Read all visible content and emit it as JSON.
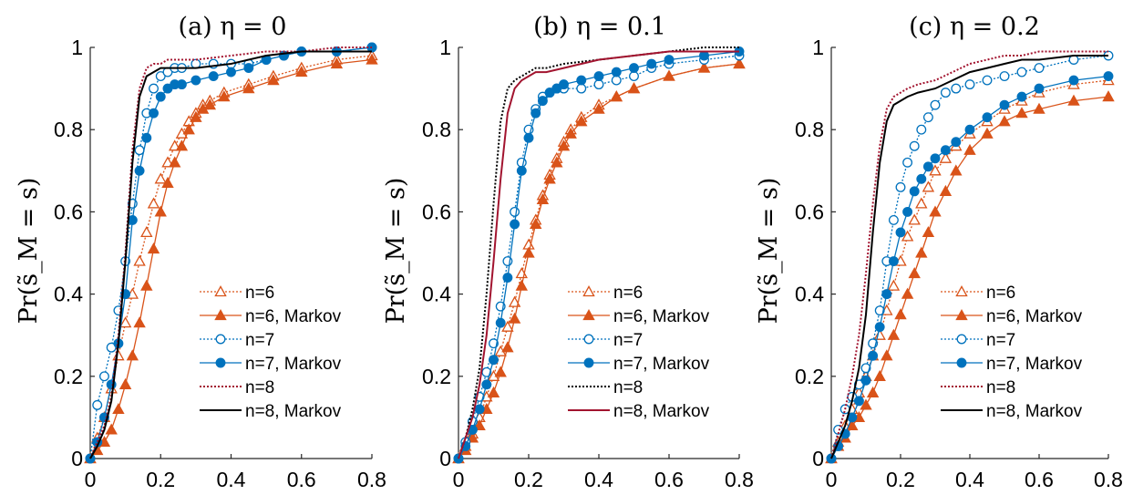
{
  "colors": {
    "orange": "#D95319",
    "blue": "#0072BD",
    "black": "#000000",
    "darkred": "#A2142F"
  },
  "chart_data": [
    {
      "type": "line",
      "title": "(a) η = 0",
      "ylabel": "Pr(s̃_M = s)",
      "xlim": [
        0,
        0.8
      ],
      "ylim": [
        0,
        1
      ],
      "xticks": [
        "0",
        "0.2",
        "0.4",
        "0.6",
        "0.8"
      ],
      "yticks": [
        "0",
        "0.2",
        "0.4",
        "0.6",
        "0.8",
        "1"
      ],
      "legend_position": "lower-right",
      "series": [
        {
          "name": "n=6",
          "color": "#D95319",
          "line": "dotted",
          "marker": "triangle-open",
          "x": [
            0,
            0.02,
            0.04,
            0.06,
            0.08,
            0.1,
            0.12,
            0.14,
            0.16,
            0.18,
            0.2,
            0.22,
            0.24,
            0.26,
            0.28,
            0.3,
            0.32,
            0.34,
            0.38,
            0.45,
            0.52,
            0.6,
            0.7,
            0.8
          ],
          "y": [
            0,
            0.05,
            0.1,
            0.17,
            0.25,
            0.33,
            0.4,
            0.48,
            0.55,
            0.62,
            0.68,
            0.72,
            0.76,
            0.79,
            0.82,
            0.84,
            0.86,
            0.87,
            0.89,
            0.91,
            0.93,
            0.95,
            0.97,
            0.98
          ]
        },
        {
          "name": "n=6, Markov",
          "color": "#D95319",
          "line": "solid",
          "marker": "triangle-filled",
          "x": [
            0,
            0.02,
            0.04,
            0.06,
            0.08,
            0.1,
            0.12,
            0.14,
            0.16,
            0.18,
            0.2,
            0.22,
            0.24,
            0.26,
            0.28,
            0.3,
            0.32,
            0.34,
            0.38,
            0.45,
            0.52,
            0.6,
            0.7,
            0.8
          ],
          "y": [
            0,
            0.02,
            0.04,
            0.07,
            0.12,
            0.18,
            0.25,
            0.33,
            0.42,
            0.51,
            0.6,
            0.67,
            0.72,
            0.76,
            0.8,
            0.83,
            0.85,
            0.86,
            0.88,
            0.9,
            0.92,
            0.94,
            0.96,
            0.97
          ]
        },
        {
          "name": "n=7",
          "color": "#0072BD",
          "line": "dotted",
          "marker": "circle-open",
          "x": [
            0,
            0.02,
            0.04,
            0.06,
            0.08,
            0.1,
            0.12,
            0.14,
            0.16,
            0.18,
            0.2,
            0.22,
            0.24,
            0.26,
            0.3,
            0.35,
            0.4,
            0.45,
            0.5,
            0.55,
            0.6,
            0.7,
            0.8
          ],
          "y": [
            0,
            0.13,
            0.2,
            0.27,
            0.36,
            0.48,
            0.62,
            0.75,
            0.84,
            0.9,
            0.93,
            0.94,
            0.95,
            0.95,
            0.96,
            0.96,
            0.96,
            0.96,
            0.97,
            0.98,
            0.99,
            0.99,
            1.0
          ]
        },
        {
          "name": "n=7, Markov",
          "color": "#0072BD",
          "line": "solid",
          "marker": "circle-filled",
          "x": [
            0,
            0.02,
            0.04,
            0.06,
            0.08,
            0.1,
            0.12,
            0.14,
            0.16,
            0.18,
            0.2,
            0.22,
            0.24,
            0.26,
            0.3,
            0.35,
            0.4,
            0.45,
            0.5,
            0.55,
            0.6,
            0.7,
            0.8
          ],
          "y": [
            0,
            0.04,
            0.1,
            0.18,
            0.28,
            0.4,
            0.58,
            0.7,
            0.78,
            0.84,
            0.88,
            0.9,
            0.91,
            0.91,
            0.92,
            0.93,
            0.94,
            0.95,
            0.97,
            0.98,
            0.99,
            0.99,
            1.0
          ]
        },
        {
          "name": "n=8",
          "color": "#A2142F",
          "line": "dotted",
          "marker": "none",
          "x": [
            0,
            0.02,
            0.04,
            0.06,
            0.08,
            0.1,
            0.12,
            0.14,
            0.16,
            0.18,
            0.2,
            0.22,
            0.25,
            0.3,
            0.4,
            0.5,
            0.6,
            0.7,
            0.8
          ],
          "y": [
            0,
            0.04,
            0.08,
            0.15,
            0.3,
            0.5,
            0.75,
            0.9,
            0.95,
            0.96,
            0.96,
            0.97,
            0.97,
            0.97,
            0.98,
            0.99,
            0.99,
            1.0,
            1.0
          ]
        },
        {
          "name": "n=8, Markov",
          "color": "#000000",
          "line": "solid",
          "marker": "none",
          "x": [
            0,
            0.02,
            0.04,
            0.06,
            0.08,
            0.1,
            0.12,
            0.14,
            0.16,
            0.18,
            0.2,
            0.25,
            0.3,
            0.4,
            0.5,
            0.6,
            0.7,
            0.8
          ],
          "y": [
            0,
            0.03,
            0.07,
            0.14,
            0.28,
            0.48,
            0.72,
            0.88,
            0.93,
            0.94,
            0.95,
            0.95,
            0.95,
            0.96,
            0.98,
            0.99,
            0.99,
            0.99
          ]
        }
      ]
    },
    {
      "type": "line",
      "title": "(b) η = 0.1",
      "ylabel": "Pr(s̃_M = s)",
      "xlim": [
        0,
        0.8
      ],
      "ylim": [
        0,
        1
      ],
      "xticks": [
        "0",
        "0.2",
        "0.4",
        "0.6",
        "0.8"
      ],
      "yticks": [
        "0",
        "0.2",
        "0.4",
        "0.6",
        "0.8",
        "1"
      ],
      "legend_position": "lower-right",
      "series": [
        {
          "name": "n=6",
          "color": "#D95319",
          "line": "dotted",
          "marker": "triangle-open",
          "x": [
            0,
            0.02,
            0.04,
            0.06,
            0.08,
            0.1,
            0.12,
            0.14,
            0.16,
            0.18,
            0.2,
            0.22,
            0.24,
            0.26,
            0.28,
            0.3,
            0.32,
            0.35,
            0.4,
            0.45,
            0.5,
            0.6,
            0.7,
            0.8
          ],
          "y": [
            0,
            0.03,
            0.06,
            0.1,
            0.15,
            0.2,
            0.26,
            0.32,
            0.38,
            0.45,
            0.52,
            0.58,
            0.64,
            0.69,
            0.73,
            0.77,
            0.8,
            0.83,
            0.86,
            0.88,
            0.9,
            0.93,
            0.95,
            0.96
          ]
        },
        {
          "name": "n=6, Markov",
          "color": "#D95319",
          "line": "solid",
          "marker": "triangle-filled",
          "x": [
            0,
            0.02,
            0.04,
            0.06,
            0.08,
            0.1,
            0.12,
            0.14,
            0.16,
            0.18,
            0.2,
            0.22,
            0.24,
            0.26,
            0.28,
            0.3,
            0.32,
            0.35,
            0.4,
            0.45,
            0.5,
            0.6,
            0.7,
            0.8
          ],
          "y": [
            0,
            0.02,
            0.05,
            0.08,
            0.12,
            0.16,
            0.21,
            0.27,
            0.34,
            0.42,
            0.5,
            0.57,
            0.63,
            0.68,
            0.72,
            0.76,
            0.79,
            0.82,
            0.85,
            0.88,
            0.9,
            0.93,
            0.95,
            0.96
          ]
        },
        {
          "name": "n=7",
          "color": "#0072BD",
          "line": "dotted",
          "marker": "circle-open",
          "x": [
            0,
            0.02,
            0.04,
            0.06,
            0.08,
            0.1,
            0.12,
            0.14,
            0.16,
            0.18,
            0.2,
            0.22,
            0.24,
            0.26,
            0.28,
            0.3,
            0.35,
            0.4,
            0.45,
            0.5,
            0.55,
            0.6,
            0.7,
            0.8
          ],
          "y": [
            0,
            0.04,
            0.09,
            0.15,
            0.21,
            0.28,
            0.37,
            0.48,
            0.6,
            0.72,
            0.8,
            0.85,
            0.88,
            0.89,
            0.9,
            0.9,
            0.9,
            0.91,
            0.92,
            0.93,
            0.95,
            0.96,
            0.97,
            0.98
          ]
        },
        {
          "name": "n=7, Markov",
          "color": "#0072BD",
          "line": "solid",
          "marker": "circle-filled",
          "x": [
            0,
            0.02,
            0.04,
            0.06,
            0.08,
            0.1,
            0.12,
            0.14,
            0.16,
            0.18,
            0.2,
            0.22,
            0.24,
            0.26,
            0.28,
            0.3,
            0.35,
            0.4,
            0.45,
            0.5,
            0.55,
            0.6,
            0.7,
            0.8
          ],
          "y": [
            0,
            0.03,
            0.07,
            0.12,
            0.18,
            0.24,
            0.33,
            0.44,
            0.57,
            0.7,
            0.78,
            0.84,
            0.87,
            0.89,
            0.9,
            0.91,
            0.92,
            0.93,
            0.94,
            0.95,
            0.96,
            0.97,
            0.98,
            0.99
          ]
        },
        {
          "name": "n=8",
          "color": "#000000",
          "line": "dotted",
          "marker": "none",
          "x": [
            0,
            0.02,
            0.04,
            0.06,
            0.08,
            0.1,
            0.12,
            0.14,
            0.16,
            0.18,
            0.2,
            0.22,
            0.25,
            0.3,
            0.4,
            0.5,
            0.6,
            0.7,
            0.8
          ],
          "y": [
            0,
            0.05,
            0.12,
            0.22,
            0.4,
            0.62,
            0.82,
            0.9,
            0.92,
            0.93,
            0.94,
            0.95,
            0.95,
            0.96,
            0.97,
            0.98,
            0.99,
            1.0,
            1.0
          ]
        },
        {
          "name": "n=8, Markov",
          "color": "#A2142F",
          "line": "solid",
          "marker": "none",
          "x": [
            0,
            0.02,
            0.04,
            0.06,
            0.08,
            0.1,
            0.12,
            0.14,
            0.16,
            0.18,
            0.2,
            0.22,
            0.25,
            0.3,
            0.4,
            0.5,
            0.6,
            0.7,
            0.8
          ],
          "y": [
            0,
            0.05,
            0.1,
            0.18,
            0.3,
            0.48,
            0.68,
            0.84,
            0.9,
            0.92,
            0.93,
            0.94,
            0.94,
            0.95,
            0.97,
            0.98,
            0.99,
            0.99,
            0.99
          ]
        }
      ]
    },
    {
      "type": "line",
      "title": "(c) η = 0.2",
      "ylabel": "Pr(s̃_M = s)",
      "xlim": [
        0,
        0.8
      ],
      "ylim": [
        0,
        1
      ],
      "xticks": [
        "0",
        "0.2",
        "0.4",
        "0.6",
        "0.8"
      ],
      "yticks": [
        "0",
        "0.2",
        "0.4",
        "0.6",
        "0.8",
        "1"
      ],
      "legend_position": "lower-right",
      "series": [
        {
          "name": "n=6",
          "color": "#D95319",
          "line": "dotted",
          "marker": "triangle-open",
          "x": [
            0,
            0.02,
            0.04,
            0.06,
            0.08,
            0.1,
            0.12,
            0.14,
            0.16,
            0.18,
            0.2,
            0.22,
            0.24,
            0.26,
            0.28,
            0.3,
            0.33,
            0.36,
            0.4,
            0.45,
            0.5,
            0.55,
            0.6,
            0.7,
            0.8
          ],
          "y": [
            0,
            0.04,
            0.08,
            0.12,
            0.16,
            0.2,
            0.25,
            0.3,
            0.36,
            0.42,
            0.48,
            0.54,
            0.58,
            0.62,
            0.66,
            0.7,
            0.73,
            0.76,
            0.79,
            0.82,
            0.85,
            0.87,
            0.89,
            0.91,
            0.92
          ]
        },
        {
          "name": "n=6, Markov",
          "color": "#D95319",
          "line": "solid",
          "marker": "triangle-filled",
          "x": [
            0,
            0.02,
            0.04,
            0.06,
            0.08,
            0.1,
            0.12,
            0.14,
            0.16,
            0.18,
            0.2,
            0.22,
            0.24,
            0.26,
            0.28,
            0.3,
            0.33,
            0.36,
            0.4,
            0.45,
            0.5,
            0.55,
            0.6,
            0.7,
            0.8
          ],
          "y": [
            0,
            0.03,
            0.05,
            0.08,
            0.1,
            0.13,
            0.16,
            0.2,
            0.25,
            0.3,
            0.35,
            0.4,
            0.45,
            0.5,
            0.55,
            0.6,
            0.65,
            0.7,
            0.75,
            0.79,
            0.82,
            0.84,
            0.85,
            0.87,
            0.88
          ]
        },
        {
          "name": "n=7",
          "color": "#0072BD",
          "line": "dotted",
          "marker": "circle-open",
          "x": [
            0,
            0.02,
            0.04,
            0.06,
            0.08,
            0.1,
            0.12,
            0.14,
            0.16,
            0.18,
            0.2,
            0.22,
            0.24,
            0.26,
            0.28,
            0.3,
            0.33,
            0.36,
            0.4,
            0.45,
            0.5,
            0.55,
            0.6,
            0.7,
            0.8
          ],
          "y": [
            0,
            0.07,
            0.12,
            0.15,
            0.18,
            0.22,
            0.28,
            0.36,
            0.48,
            0.58,
            0.66,
            0.72,
            0.76,
            0.8,
            0.83,
            0.86,
            0.89,
            0.9,
            0.91,
            0.92,
            0.93,
            0.94,
            0.95,
            0.97,
            0.98
          ]
        },
        {
          "name": "n=7, Markov",
          "color": "#0072BD",
          "line": "solid",
          "marker": "circle-filled",
          "x": [
            0,
            0.02,
            0.04,
            0.06,
            0.08,
            0.1,
            0.12,
            0.14,
            0.16,
            0.18,
            0.2,
            0.22,
            0.24,
            0.26,
            0.28,
            0.3,
            0.33,
            0.36,
            0.4,
            0.45,
            0.5,
            0.55,
            0.6,
            0.7,
            0.8
          ],
          "y": [
            0,
            0.03,
            0.06,
            0.1,
            0.14,
            0.19,
            0.25,
            0.32,
            0.4,
            0.48,
            0.55,
            0.6,
            0.65,
            0.68,
            0.71,
            0.73,
            0.75,
            0.77,
            0.8,
            0.83,
            0.86,
            0.88,
            0.9,
            0.92,
            0.93
          ]
        },
        {
          "name": "n=8",
          "color": "#A2142F",
          "line": "dotted",
          "marker": "none",
          "x": [
            0,
            0.02,
            0.04,
            0.06,
            0.08,
            0.1,
            0.12,
            0.14,
            0.16,
            0.18,
            0.2,
            0.22,
            0.25,
            0.3,
            0.35,
            0.4,
            0.45,
            0.5,
            0.55,
            0.6,
            0.7,
            0.8
          ],
          "y": [
            0,
            0.06,
            0.12,
            0.2,
            0.3,
            0.45,
            0.62,
            0.76,
            0.85,
            0.88,
            0.89,
            0.9,
            0.91,
            0.92,
            0.94,
            0.96,
            0.97,
            0.98,
            0.98,
            0.99,
            0.99,
            0.99
          ]
        },
        {
          "name": "n=8, Markov",
          "color": "#000000",
          "line": "solid",
          "marker": "none",
          "x": [
            0,
            0.02,
            0.04,
            0.06,
            0.08,
            0.1,
            0.12,
            0.14,
            0.16,
            0.18,
            0.2,
            0.22,
            0.25,
            0.3,
            0.35,
            0.4,
            0.45,
            0.5,
            0.55,
            0.6,
            0.7,
            0.8
          ],
          "y": [
            0,
            0.04,
            0.08,
            0.14,
            0.22,
            0.35,
            0.55,
            0.72,
            0.82,
            0.86,
            0.87,
            0.88,
            0.89,
            0.9,
            0.92,
            0.94,
            0.95,
            0.96,
            0.97,
            0.97,
            0.98,
            0.98
          ]
        }
      ]
    }
  ]
}
